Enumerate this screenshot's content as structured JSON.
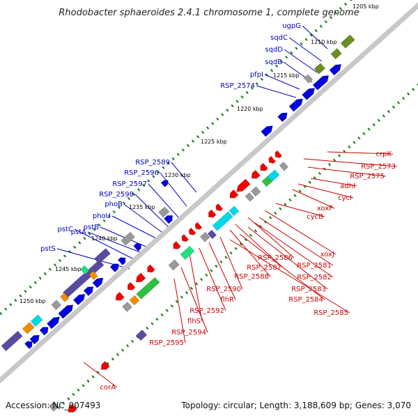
{
  "title": "Rhodobacter sphaeroides 2.4.1 chromosome 1, complete genome",
  "footer": {
    "accession": "Accession: NC_007493",
    "summary": "Topology: circular; Length: 3,188,609 bp; Genes: 3,070"
  },
  "scale_labels": [
    "1205 kbp",
    "1210 kbp",
    "1215 kbp",
    "1220 kbp",
    "1225 kbp",
    "1230 kbp",
    "1235 kbp",
    "1240 kbp",
    "1245 kbp",
    "1250 kbp"
  ],
  "genes_forward": [
    "ugpG",
    "sqdC",
    "sqdD",
    "sqdB",
    "pfpI",
    "RSP_2574",
    "RSP_2589",
    "RSP_2596",
    "RSP_2597",
    "RSP_2598",
    "phoB",
    "phoU",
    "pstB",
    "pstA",
    "pstC",
    "pstS"
  ],
  "genes_reverse": [
    "crpK",
    "RSP_2573",
    "RSP_2575",
    "adhI",
    "cycI",
    "xoxF",
    "cycB",
    "xoxJ",
    "RSP_2581",
    "RSP_2582",
    "RSP_2583",
    "RSP_2584",
    "RSP_2585",
    "RSP_2586",
    "RSP_2587",
    "RSP_2588",
    "RSP_2590",
    "flhR",
    "RSP_2592",
    "flhS",
    "RSP_2594",
    "RSP_2595",
    "corA"
  ],
  "colors": {
    "backbone": "#8c8c8c",
    "forward_label": "#0000bb",
    "reverse_label": "#cc0000",
    "cds_forward": "#0000dd",
    "cds_reverse": "#ee0000",
    "cog_olive": "#6b8e23",
    "cog_slateblue": "#5a4aa0",
    "cog_cyan": "#00d8e8",
    "cog_green": "#30c040",
    "cog_spring": "#20e080",
    "cog_gray": "#999999",
    "cog_orange": "#f08c00",
    "gc_skew": "#208020"
  }
}
